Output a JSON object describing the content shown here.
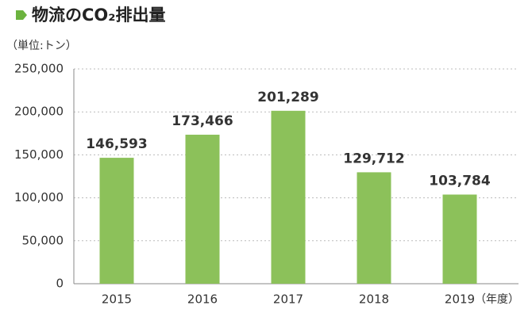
{
  "chart_data": {
    "type": "bar",
    "title": "物流のCO₂排出量",
    "y_unit_label": "（単位:トン）",
    "x_unit_label": "（年度）",
    "categories": [
      "2015",
      "2016",
      "2017",
      "2018",
      "2019"
    ],
    "values": [
      146593,
      173466,
      201289,
      129712,
      103784
    ],
    "value_labels": [
      "146,593",
      "173,466",
      "201,289",
      "129,712",
      "103,784"
    ],
    "color": "#8cc15a",
    "ylim": [
      0,
      250000
    ],
    "yticks": [
      0,
      {
        "value": 50000,
        "label": "50,000"
      },
      {
        "value": 100000,
        "label": "100,000"
      },
      {
        "value": 150000,
        "label": "150,000"
      },
      {
        "value": 200000,
        "label": "200,000"
      },
      {
        "value": 250000,
        "label": "250,000"
      }
    ],
    "grid": true
  }
}
